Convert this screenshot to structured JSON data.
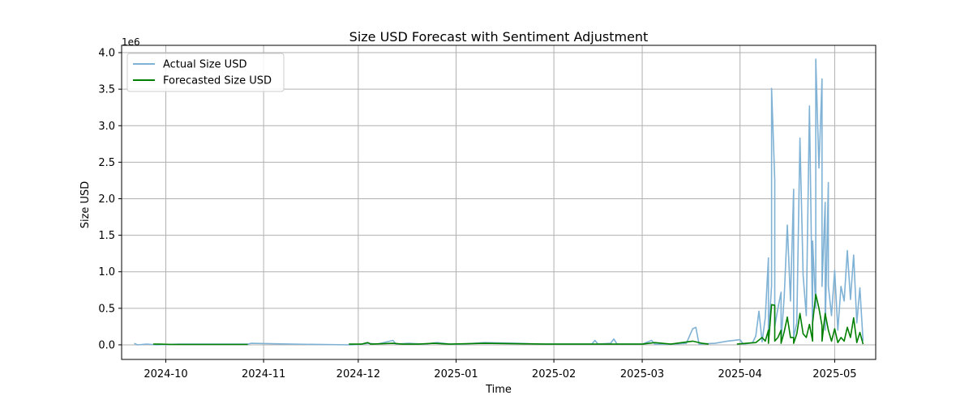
{
  "chart_data": {
    "type": "line",
    "title": "Size USD Forecast with Sentiment Adjustment",
    "xlabel": "Time",
    "ylabel": "Size USD",
    "y_offset_text": "1e6",
    "x_ticks": [
      {
        "date": "2024-10-01",
        "label": "2024-10"
      },
      {
        "date": "2024-11-01",
        "label": "2024-11"
      },
      {
        "date": "2024-12-01",
        "label": "2024-12"
      },
      {
        "date": "2025-01-01",
        "label": "2025-01"
      },
      {
        "date": "2025-02-01",
        "label": "2025-02"
      },
      {
        "date": "2025-03-01",
        "label": "2025-03"
      },
      {
        "date": "2025-04-01",
        "label": "2025-04"
      },
      {
        "date": "2025-05-01",
        "label": "2025-05"
      }
    ],
    "y_ticks": [
      0,
      0.5,
      1.0,
      1.5,
      2.0,
      2.5,
      3.0,
      3.5,
      4.0
    ],
    "y_tick_labels": [
      "0.0",
      "0.5",
      "1.0",
      "1.5",
      "2.0",
      "2.5",
      "3.0",
      "3.5",
      "4.0"
    ],
    "xlim": [
      "2024-09-17",
      "2025-05-14"
    ],
    "ylim": [
      -0.2,
      4.1
    ],
    "grid": true,
    "legend_position": "top-left",
    "series": [
      {
        "name": "Actual Size USD",
        "color": "#7fb2d5",
        "points": [
          [
            "2024-09-21",
            0.02
          ],
          [
            "2024-09-22",
            0.0
          ],
          [
            "2024-09-25",
            0.01
          ],
          [
            "2024-09-28",
            0.0
          ],
          [
            "2024-10-05",
            0.01
          ],
          [
            "2024-10-15",
            0.01
          ],
          [
            "2024-10-27",
            0.01
          ],
          [
            "2024-10-28",
            0.02
          ],
          [
            "2024-11-10",
            0.01
          ],
          [
            "2024-11-29",
            0.0
          ],
          [
            "2024-12-02",
            0.01
          ],
          [
            "2024-12-04",
            0.02
          ],
          [
            "2024-12-07",
            0.01
          ],
          [
            "2024-12-12",
            0.06
          ],
          [
            "2024-12-13",
            0.01
          ],
          [
            "2024-12-17",
            0.02
          ],
          [
            "2024-12-22",
            0.01
          ],
          [
            "2024-12-26",
            0.03
          ],
          [
            "2024-12-30",
            0.01
          ],
          [
            "2025-01-03",
            0.01
          ],
          [
            "2025-01-10",
            0.03
          ],
          [
            "2025-01-20",
            0.02
          ],
          [
            "2025-01-28",
            0.01
          ],
          [
            "2025-02-05",
            0.01
          ],
          [
            "2025-02-13",
            0.01
          ],
          [
            "2025-02-14",
            0.06
          ],
          [
            "2025-02-15",
            0.01
          ],
          [
            "2025-02-19",
            0.02
          ],
          [
            "2025-02-20",
            0.08
          ],
          [
            "2025-02-21",
            0.01
          ],
          [
            "2025-03-01",
            0.01
          ],
          [
            "2025-03-04",
            0.06
          ],
          [
            "2025-03-05",
            0.01
          ],
          [
            "2025-03-10",
            0.01
          ],
          [
            "2025-03-15",
            0.02
          ],
          [
            "2025-03-17",
            0.22
          ],
          [
            "2025-03-18",
            0.24
          ],
          [
            "2025-03-19",
            0.01
          ],
          [
            "2025-03-24",
            0.02
          ],
          [
            "2025-03-28",
            0.05
          ],
          [
            "2025-04-01",
            0.07
          ],
          [
            "2025-04-02",
            0.01
          ],
          [
            "2025-04-05",
            0.03
          ],
          [
            "2025-04-06",
            0.12
          ],
          [
            "2025-04-07",
            0.46
          ],
          [
            "2025-04-08",
            0.04
          ],
          [
            "2025-04-09",
            0.37
          ],
          [
            "2025-04-10",
            1.19
          ],
          [
            "2025-04-10",
            0.1
          ],
          [
            "2025-04-11",
            0.81
          ],
          [
            "2025-04-11",
            3.51
          ],
          [
            "2025-04-12",
            2.26
          ],
          [
            "2025-04-12",
            0.25
          ],
          [
            "2025-04-13",
            0.5
          ],
          [
            "2025-04-14",
            0.72
          ],
          [
            "2025-04-14",
            0.05
          ],
          [
            "2025-04-15",
            0.66
          ],
          [
            "2025-04-16",
            1.64
          ],
          [
            "2025-04-17",
            0.6
          ],
          [
            "2025-04-18",
            2.13
          ],
          [
            "2025-04-18",
            0.1
          ],
          [
            "2025-04-19",
            0.3
          ],
          [
            "2025-04-20",
            2.83
          ],
          [
            "2025-04-21",
            0.95
          ],
          [
            "2025-04-22",
            0.4
          ],
          [
            "2025-04-23",
            3.27
          ],
          [
            "2025-04-24",
            0.2
          ],
          [
            "2025-04-24",
            1.42
          ],
          [
            "2025-04-25",
            0.5
          ],
          [
            "2025-04-25",
            3.91
          ],
          [
            "2025-04-26",
            2.42
          ],
          [
            "2025-04-27",
            3.64
          ],
          [
            "2025-04-27",
            0.8
          ],
          [
            "2025-04-28",
            1.95
          ],
          [
            "2025-04-28",
            0.2
          ],
          [
            "2025-04-29",
            2.22
          ],
          [
            "2025-04-29",
            0.81
          ],
          [
            "2025-04-30",
            0.4
          ],
          [
            "2025-05-01",
            1.02
          ],
          [
            "2025-05-02",
            0.2
          ],
          [
            "2025-05-03",
            0.8
          ],
          [
            "2025-05-04",
            0.6
          ],
          [
            "2025-05-05",
            1.29
          ],
          [
            "2025-05-06",
            0.62
          ],
          [
            "2025-05-07",
            1.23
          ],
          [
            "2025-05-08",
            0.3
          ],
          [
            "2025-05-09",
            0.78
          ],
          [
            "2025-05-10",
            0.05
          ]
        ]
      },
      {
        "name": "Forecasted Size USD",
        "color": "#008000",
        "segments": [
          [
            [
              "2024-09-27",
              0.01
            ],
            [
              "2024-09-29",
              0.01
            ],
            [
              "2024-10-03",
              0.005
            ],
            [
              "2024-10-10",
              0.005
            ],
            [
              "2024-10-20",
              0.005
            ],
            [
              "2024-10-27",
              0.005
            ]
          ],
          [
            [
              "2024-11-28",
              0.01
            ],
            [
              "2024-12-02",
              0.01
            ],
            [
              "2024-12-04",
              0.03
            ],
            [
              "2024-12-05",
              0.01
            ],
            [
              "2024-12-12",
              0.02
            ],
            [
              "2024-12-15",
              0.01
            ],
            [
              "2024-12-20",
              0.01
            ],
            [
              "2024-12-25",
              0.02
            ],
            [
              "2024-12-30",
              0.01
            ],
            [
              "2025-01-10",
              0.02
            ],
            [
              "2025-01-20",
              0.015
            ],
            [
              "2025-01-30",
              0.01
            ],
            [
              "2025-02-10",
              0.01
            ],
            [
              "2025-02-20",
              0.01
            ],
            [
              "2025-03-01",
              0.01
            ],
            [
              "2025-03-05",
              0.03
            ],
            [
              "2025-03-10",
              0.01
            ],
            [
              "2025-03-17",
              0.05
            ],
            [
              "2025-03-20",
              0.02
            ],
            [
              "2025-03-22",
              0.01
            ]
          ],
          [
            [
              "2025-03-31",
              0.01
            ],
            [
              "2025-04-03",
              0.02
            ],
            [
              "2025-04-06",
              0.03
            ],
            [
              "2025-04-08",
              0.1
            ],
            [
              "2025-04-09",
              0.05
            ],
            [
              "2025-04-10",
              0.2
            ],
            [
              "2025-04-10",
              0.02
            ],
            [
              "2025-04-11",
              0.55
            ],
            [
              "2025-04-12",
              0.54
            ],
            [
              "2025-04-12",
              0.05
            ],
            [
              "2025-04-13",
              0.1
            ],
            [
              "2025-04-14",
              0.2
            ],
            [
              "2025-04-14",
              0.02
            ],
            [
              "2025-04-15",
              0.18
            ],
            [
              "2025-04-16",
              0.38
            ],
            [
              "2025-04-17",
              0.1
            ],
            [
              "2025-04-18",
              0.1
            ],
            [
              "2025-04-18",
              0.02
            ],
            [
              "2025-04-19",
              0.15
            ],
            [
              "2025-04-20",
              0.43
            ],
            [
              "2025-04-21",
              0.15
            ],
            [
              "2025-04-22",
              0.1
            ],
            [
              "2025-04-23",
              0.28
            ],
            [
              "2025-04-24",
              0.05
            ],
            [
              "2025-04-24",
              0.3
            ],
            [
              "2025-04-25",
              0.69
            ],
            [
              "2025-04-26",
              0.5
            ],
            [
              "2025-04-27",
              0.26
            ],
            [
              "2025-04-27",
              0.05
            ],
            [
              "2025-04-28",
              0.43
            ],
            [
              "2025-04-29",
              0.2
            ],
            [
              "2025-04-30",
              0.05
            ],
            [
              "2025-05-01",
              0.22
            ],
            [
              "2025-05-02",
              0.03
            ],
            [
              "2025-05-03",
              0.1
            ],
            [
              "2025-05-04",
              0.05
            ],
            [
              "2025-05-05",
              0.24
            ],
            [
              "2025-05-06",
              0.1
            ],
            [
              "2025-05-07",
              0.37
            ],
            [
              "2025-05-08",
              0.03
            ],
            [
              "2025-05-09",
              0.17
            ],
            [
              "2025-05-10",
              0.01
            ]
          ]
        ]
      }
    ]
  }
}
